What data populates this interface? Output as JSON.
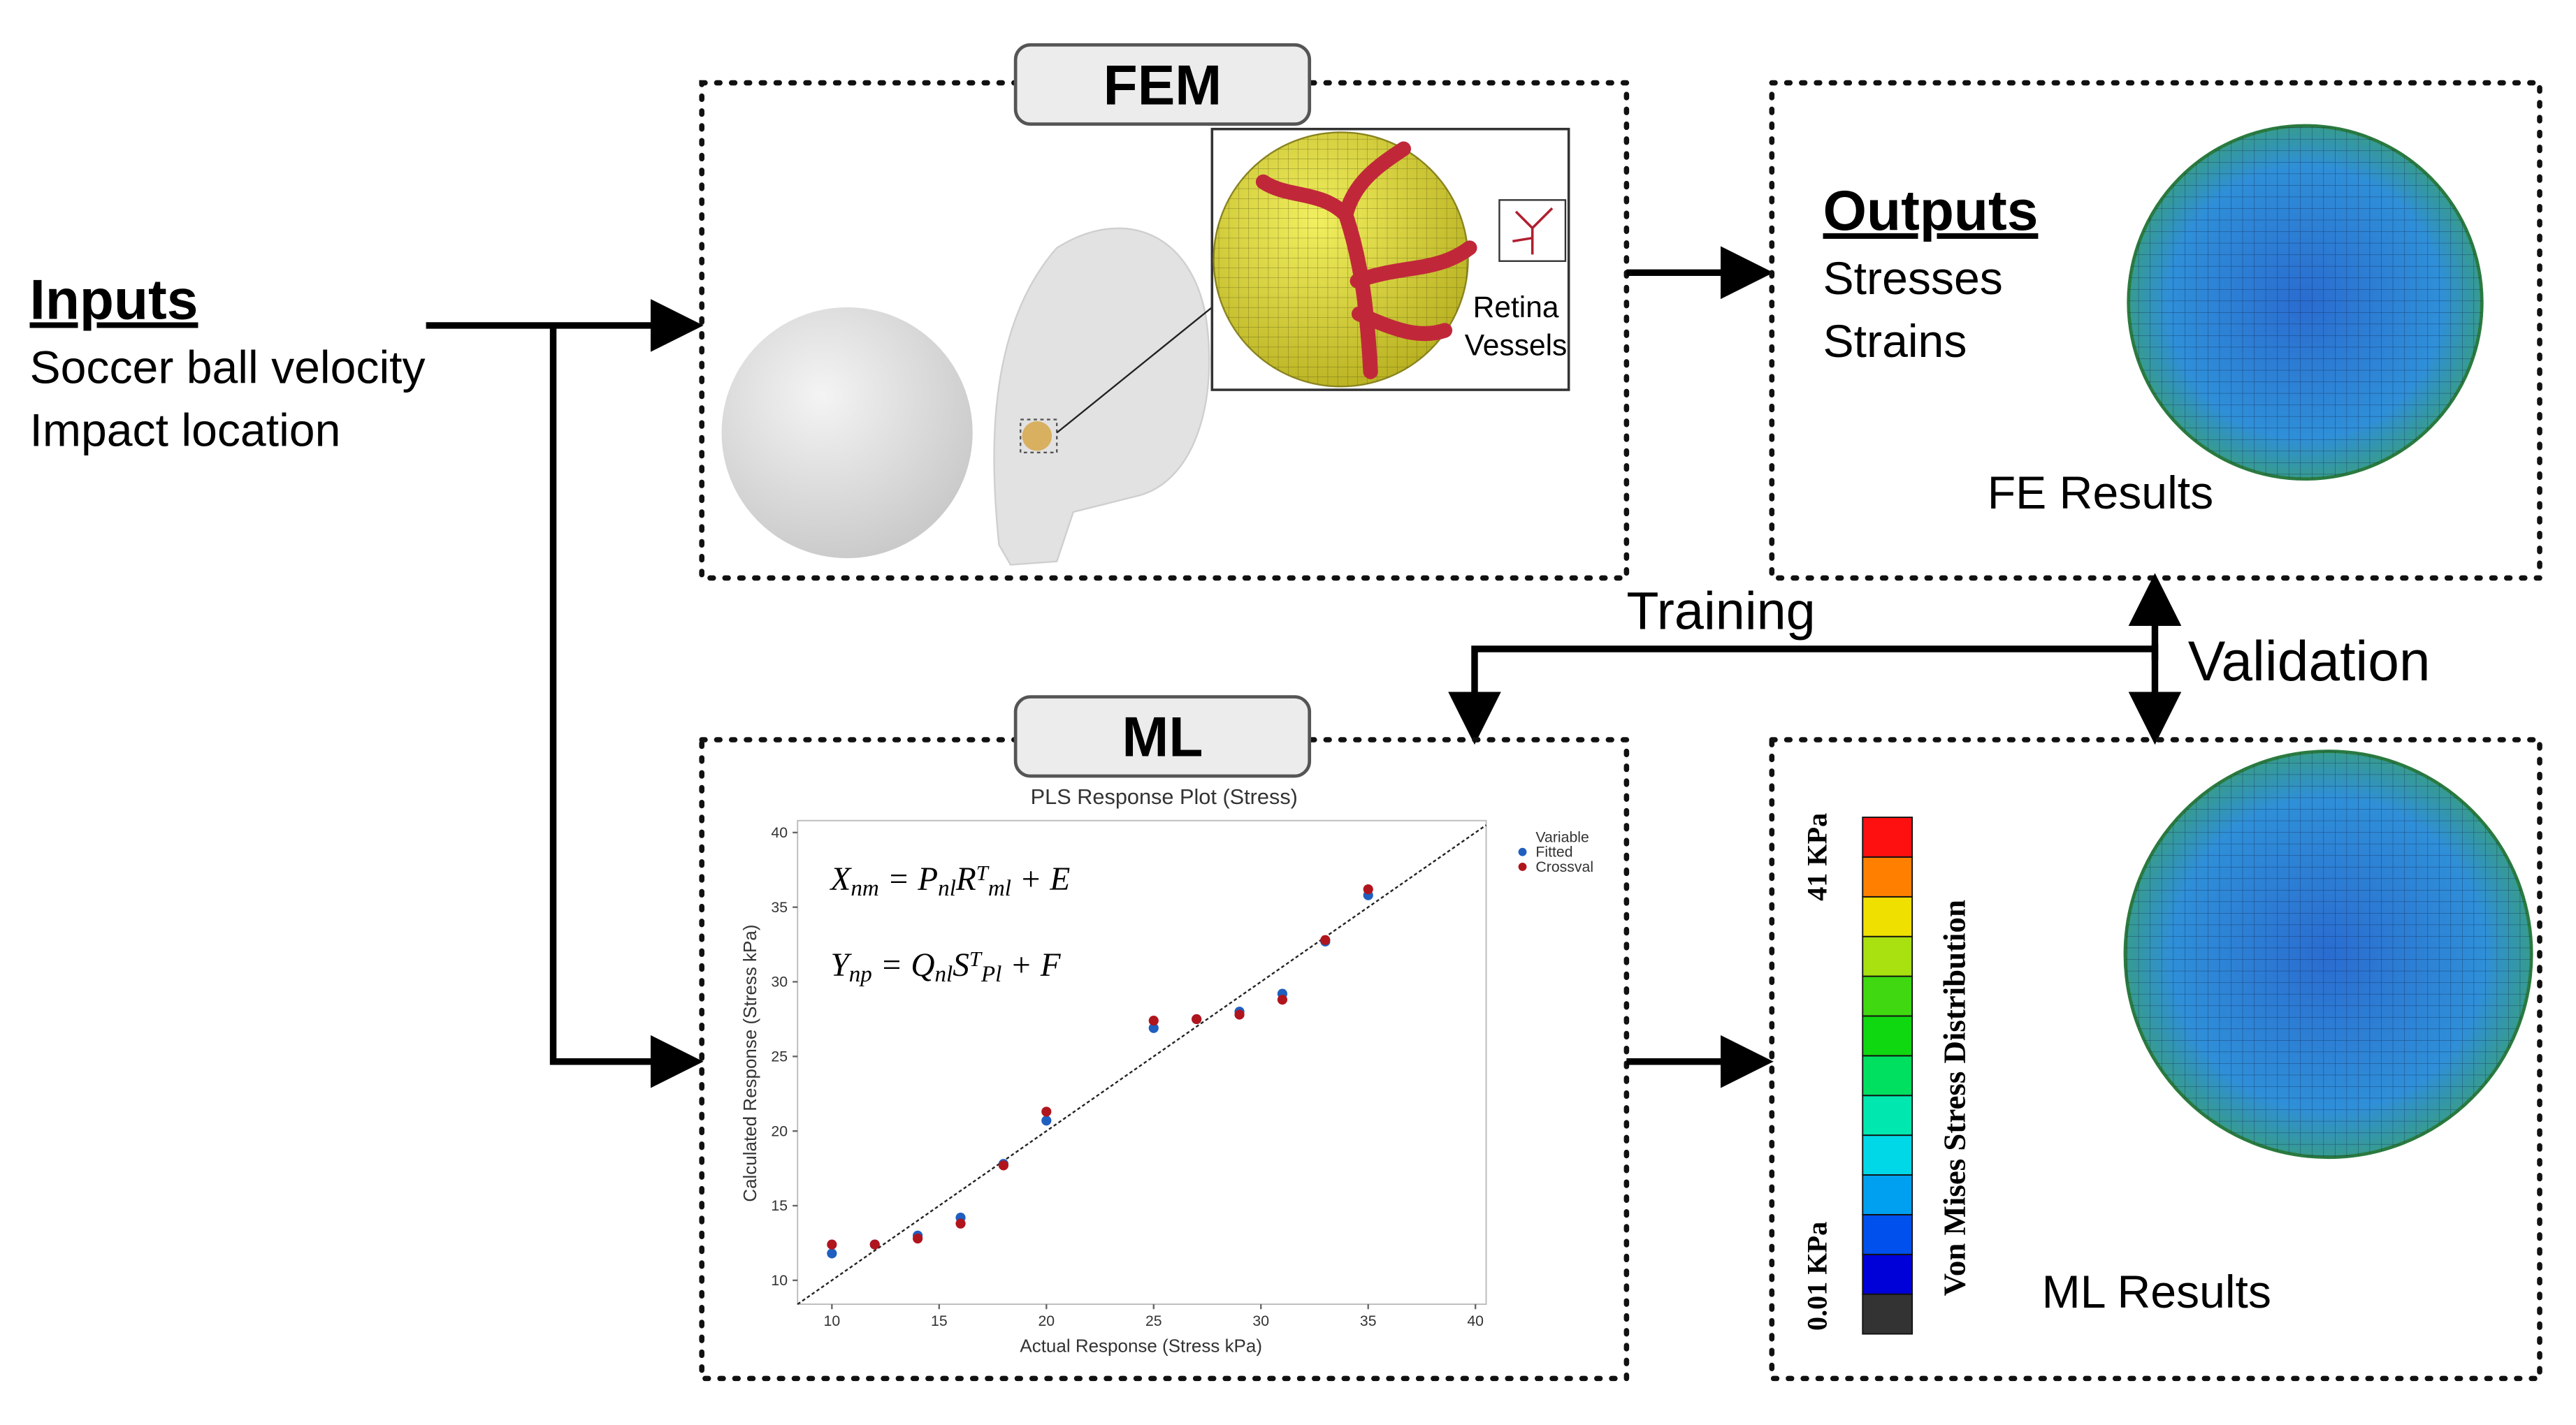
{
  "inputs": {
    "title": "Inputs",
    "items": [
      "Soccer ball velocity",
      "Impact location"
    ]
  },
  "fem": {
    "label": "FEM",
    "inset_labels": [
      "Retina",
      "Vessels"
    ]
  },
  "outputs": {
    "title": "Outputs",
    "items": [
      "Stresses",
      "Strains"
    ],
    "caption": "FE Results"
  },
  "training": "Training",
  "validation": "Validation",
  "ml": {
    "label": "ML",
    "plot": {
      "type": "scatter",
      "title": "PLS Response Plot (Stress)",
      "x_label": "Actual Response (Stress kPa)",
      "y_label": "Calculated Response (Stress kPa)",
      "xlim": [
        8.4,
        40.5
      ],
      "ylim": [
        8.4,
        40.8
      ],
      "xticks": [
        10,
        15,
        20,
        25,
        30,
        35,
        40
      ],
      "yticks": [
        10,
        15,
        20,
        25,
        30,
        35,
        40
      ],
      "legend_title": "Variable",
      "series": [
        {
          "name": "Fitted",
          "color": "#1f5fbf",
          "x": [
            10,
            12,
            14,
            16,
            18,
            20,
            25,
            27,
            29,
            31,
            33,
            35
          ],
          "values": [
            11.8,
            12.4,
            13.0,
            14.2,
            17.8,
            20.7,
            26.9,
            27.5,
            28.0,
            29.2,
            32.7,
            35.8
          ]
        },
        {
          "name": "Crossval",
          "color": "#b0151d",
          "x": [
            10,
            12,
            14,
            16,
            18,
            20,
            25,
            27,
            29,
            31,
            33,
            35
          ],
          "values": [
            12.4,
            12.4,
            12.8,
            13.8,
            17.7,
            21.3,
            27.4,
            27.5,
            27.8,
            28.8,
            32.8,
            36.2
          ]
        }
      ],
      "equations": [
        [
          {
            "text": "X"
          },
          {
            "sub": "nm"
          },
          {
            "text": " = P"
          },
          {
            "sub": "nl"
          },
          {
            "text": "R"
          },
          {
            "sup": "T"
          },
          {
            "sub": "ml"
          },
          {
            "text": " + E"
          }
        ],
        [
          {
            "text": "Y"
          },
          {
            "sub": "np"
          },
          {
            "text": " = Q"
          },
          {
            "sub": "nl"
          },
          {
            "text": "S"
          },
          {
            "sup": "T"
          },
          {
            "sub": "Pl"
          },
          {
            "text": " + F"
          }
        ]
      ]
    }
  },
  "ml_results": {
    "colorbar_colors": [
      "#333333",
      "#0000d8",
      "#0050ee",
      "#00a0f0",
      "#00d8e8",
      "#00e8b0",
      "#00e060",
      "#10d810",
      "#40d810",
      "#a8e010",
      "#f0e000",
      "#ff8000",
      "#ff1010"
    ],
    "min_label": "0.01 KPa",
    "max_label": "41 KPa",
    "colorbar_title": "Von Mises Stress Distribution",
    "caption": "ML Results"
  }
}
